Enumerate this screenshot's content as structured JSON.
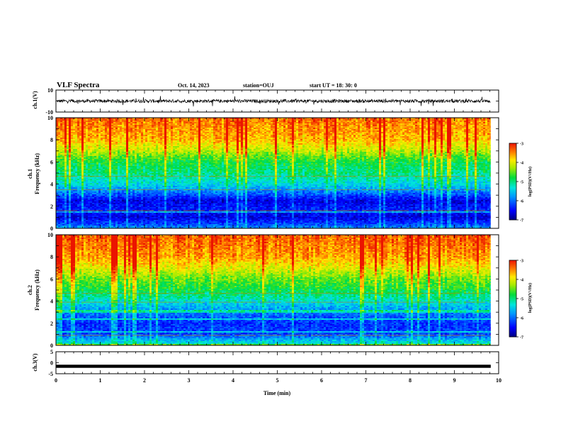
{
  "header": {
    "title": "VLF Spectra",
    "date": "Oct. 14, 2023",
    "station": "station=OUJ",
    "start": "start  UT =   18: 30: 0"
  },
  "chart_data": [
    {
      "type": "line",
      "panel": "ch1-waveform",
      "ylabel": "ch.1(V)",
      "ylim": [
        -10,
        10
      ],
      "yticks": [
        "10",
        "-10"
      ],
      "xlim": [
        0,
        10
      ],
      "data_end_min": 9.82,
      "baseline": 0,
      "amplitude_typical": 1.5,
      "amplitude_spikes": 5
    },
    {
      "type": "heatmap",
      "panel": "ch1-spectrogram",
      "ylabel_top": "ch.1",
      "ylabel": "Frequency (kHz)",
      "ylim": [
        0,
        10
      ],
      "yticks": [
        "0",
        "2",
        "4",
        "6",
        "8",
        "10"
      ],
      "xlim": [
        0,
        10
      ],
      "data_end_min": 9.82,
      "colorbar": {
        "label": "log(PSD)(V²/Hz)",
        "range": [
          -7,
          -3
        ],
        "ticks": [
          "-3",
          "-4",
          "-5",
          "-6",
          "-7"
        ]
      },
      "band_profile": [
        {
          "freq": 0.0,
          "level": -5.8
        },
        {
          "freq": 0.5,
          "level": -6.3
        },
        {
          "freq": 1.0,
          "level": -6.6
        },
        {
          "freq": 1.8,
          "level": -6.4
        },
        {
          "freq": 2.5,
          "level": -6.6
        },
        {
          "freq": 3.2,
          "level": -6.0
        },
        {
          "freq": 4.0,
          "level": -5.4
        },
        {
          "freq": 5.0,
          "level": -5.0
        },
        {
          "freq": 6.0,
          "level": -4.8
        },
        {
          "freq": 7.0,
          "level": -4.2
        },
        {
          "freq": 8.0,
          "level": -3.7
        },
        {
          "freq": 10.0,
          "level": -3.4
        }
      ],
      "tone_lines_khz": [
        4.7,
        3.5,
        1.6
      ]
    },
    {
      "type": "heatmap",
      "panel": "ch2-spectrogram",
      "ylabel_top": "ch.2",
      "ylabel": "Frequency (kHz)",
      "ylim": [
        0,
        10
      ],
      "yticks": [
        "0",
        "2",
        "4",
        "6",
        "8",
        "10"
      ],
      "xlim": [
        0,
        10
      ],
      "data_end_min": 9.82,
      "colorbar": {
        "label": "log(PSD)(V²/Hz)",
        "range": [
          -7,
          -3
        ],
        "ticks": [
          "-3",
          "-4",
          "-5",
          "-6",
          "-7"
        ]
      },
      "band_profile": [
        {
          "freq": 0.0,
          "level": -5.2
        },
        {
          "freq": 0.5,
          "level": -5.6
        },
        {
          "freq": 1.0,
          "level": -6.2
        },
        {
          "freq": 2.0,
          "level": -6.3
        },
        {
          "freq": 3.0,
          "level": -5.9
        },
        {
          "freq": 4.0,
          "level": -5.3
        },
        {
          "freq": 5.0,
          "level": -4.8
        },
        {
          "freq": 6.0,
          "level": -4.5
        },
        {
          "freq": 7.0,
          "level": -4.0
        },
        {
          "freq": 8.0,
          "level": -3.6
        },
        {
          "freq": 10.0,
          "level": -3.3
        }
      ],
      "tone_lines_khz": [
        4.7,
        3.9,
        0.9
      ]
    },
    {
      "type": "line",
      "panel": "ch3-waveform",
      "ylabel": "ch.3(V)",
      "ylim": [
        -5,
        5
      ],
      "yticks": [
        "5",
        "0",
        "-5"
      ],
      "xlim": [
        0,
        10
      ],
      "data_end_min": 9.82,
      "baseline": -1.6,
      "xlabel": "Time (min)",
      "xticks": [
        "0",
        "1",
        "2",
        "3",
        "4",
        "5",
        "6",
        "7",
        "8",
        "9",
        "10"
      ]
    }
  ]
}
